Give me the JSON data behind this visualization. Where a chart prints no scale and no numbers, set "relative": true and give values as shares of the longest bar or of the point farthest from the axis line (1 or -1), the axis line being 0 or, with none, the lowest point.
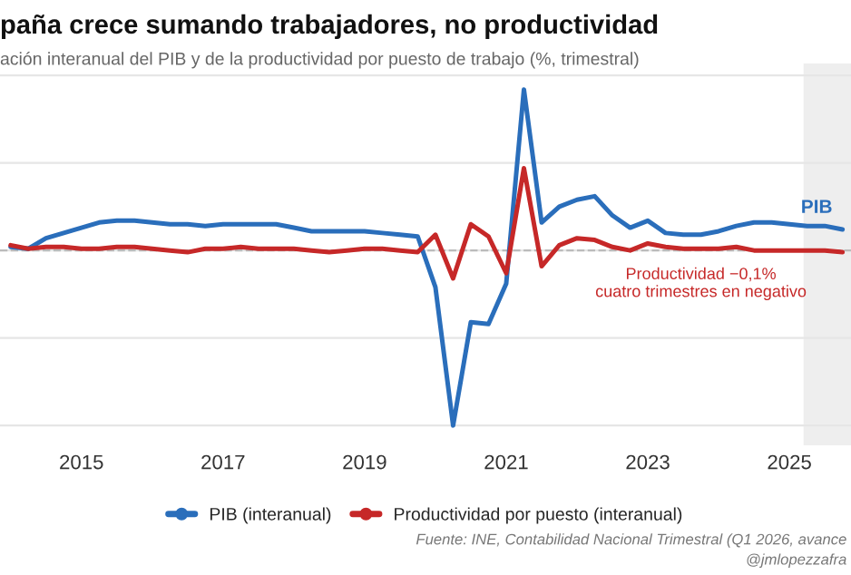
{
  "chart_data": {
    "type": "line",
    "title": "paña crece sumando trabajadores, no productividad",
    "subtitle": "ación interanual del PIB y de la productividad por puesto de trabajo (%, trimestral)",
    "relative": true,
    "x": [
      2014.0,
      2014.25,
      2014.5,
      2014.75,
      2015.0,
      2015.25,
      2015.5,
      2015.75,
      2016.0,
      2016.25,
      2016.5,
      2016.75,
      2017.0,
      2017.25,
      2017.5,
      2017.75,
      2018.0,
      2018.25,
      2018.5,
      2018.75,
      2019.0,
      2019.25,
      2019.5,
      2019.75,
      2020.0,
      2020.25,
      2020.5,
      2020.75,
      2021.0,
      2021.25,
      2021.5,
      2021.75,
      2022.0,
      2022.25,
      2022.5,
      2022.75,
      2023.0,
      2023.25,
      2023.5,
      2023.75,
      2024.0,
      2024.25,
      2024.5,
      2024.75,
      2025.0,
      2025.25,
      2025.5,
      2025.75
    ],
    "xlim": [
      2013.85,
      2025.87
    ],
    "xticks": [
      2015,
      2017,
      2019,
      2021,
      2023,
      2025
    ],
    "series": [
      {
        "name": "PIB (interanual)",
        "color": "#2a6ebb",
        "values": [
          0.02,
          0.01,
          0.07,
          0.1,
          0.13,
          0.16,
          0.17,
          0.17,
          0.16,
          0.15,
          0.15,
          0.14,
          0.15,
          0.15,
          0.15,
          0.15,
          0.13,
          0.11,
          0.11,
          0.11,
          0.11,
          0.1,
          0.09,
          0.08,
          -0.21,
          -1.0,
          -0.41,
          -0.42,
          -0.19,
          0.92,
          0.16,
          0.25,
          0.29,
          0.31,
          0.2,
          0.13,
          0.17,
          0.1,
          0.09,
          0.09,
          0.11,
          0.14,
          0.16,
          0.16,
          0.15,
          0.14,
          0.14,
          0.12
        ]
      },
      {
        "name": "Productividad por puesto (interanual)",
        "color": "#c62828",
        "values": [
          0.03,
          0.01,
          0.02,
          0.02,
          0.01,
          0.01,
          0.02,
          0.02,
          0.01,
          0.0,
          -0.01,
          0.01,
          0.01,
          0.02,
          0.01,
          0.01,
          0.01,
          0.0,
          -0.01,
          0.0,
          0.01,
          0.01,
          0.0,
          -0.01,
          0.09,
          -0.16,
          0.15,
          0.08,
          -0.13,
          0.47,
          -0.09,
          0.03,
          0.07,
          0.06,
          0.02,
          0.0,
          0.04,
          0.02,
          0.01,
          0.01,
          0.01,
          0.02,
          0.0,
          0.0,
          0.0,
          0.0,
          0.0,
          -0.01
        ]
      }
    ],
    "ref_lines": [
      {
        "axis": "y",
        "value": 0,
        "color": "#bbbbbb",
        "line_style": "dashed"
      }
    ],
    "bands": [
      {
        "axis": "x",
        "from": 2025.2,
        "to": 2025.87,
        "color": "#eeeeee"
      }
    ],
    "annotations": [
      {
        "text": "Productividad −0,1%\ncuatro trimestres en negativo",
        "x": 2023.75,
        "y": -0.01
      },
      {
        "text": "PIB",
        "x": 2025.75,
        "y": 0.12
      },
      "Fuente: INE, Contabilidad Nacional Trimestral (Q1 2026, avance",
      "@jmlopezzafra"
    ],
    "grid": "y",
    "legend": "bottom",
    "line_style": "solid",
    "marker": "none"
  }
}
